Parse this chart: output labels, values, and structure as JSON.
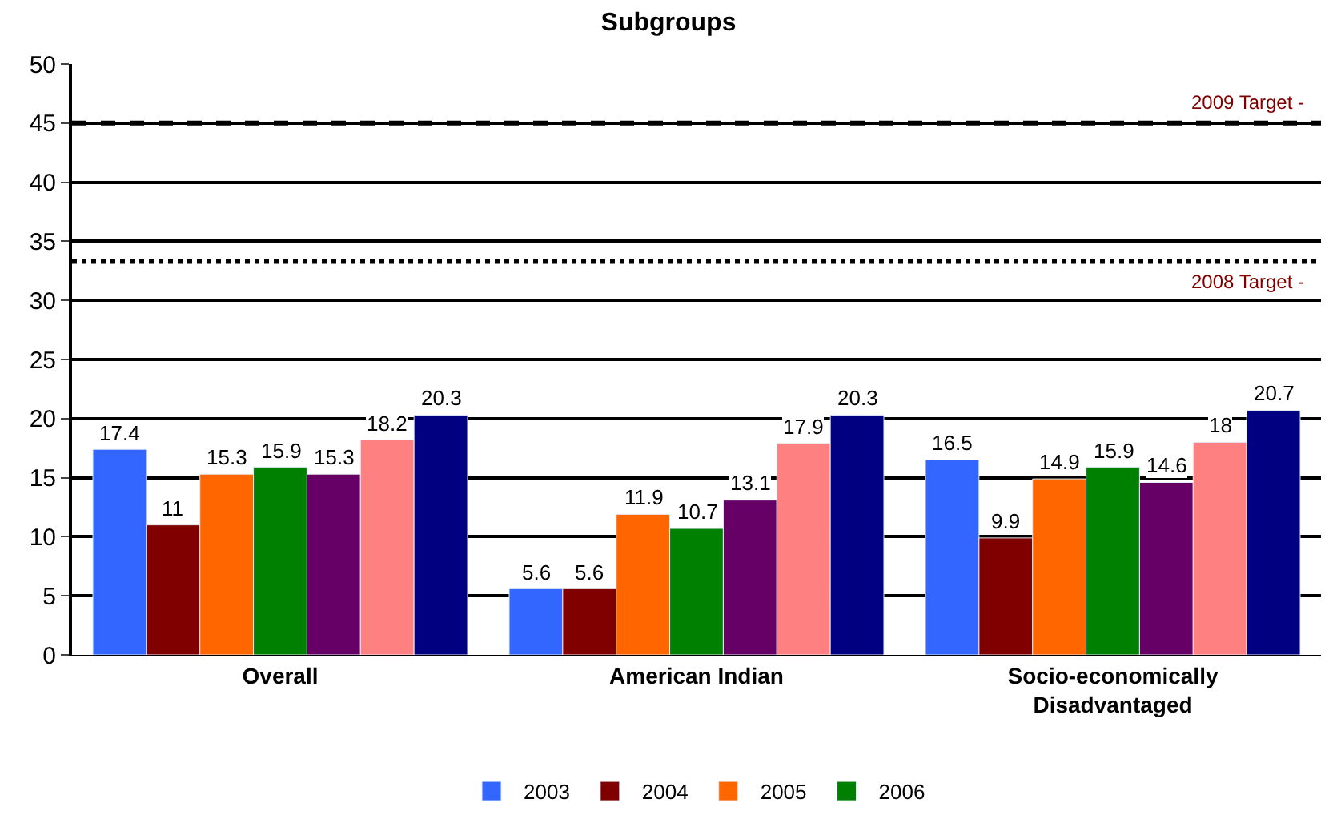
{
  "chart_data": {
    "type": "bar",
    "title": "Subgroups",
    "categories": [
      "Overall",
      "American Indian",
      "Socio-economically\nDisadvantaged"
    ],
    "series": [
      {
        "name": "2003",
        "color": "#3366ff",
        "values": [
          17.4,
          5.6,
          16.5
        ]
      },
      {
        "name": "2004",
        "color": "#800000",
        "values": [
          11,
          5.6,
          9.9
        ]
      },
      {
        "name": "2005",
        "color": "#ff6600",
        "values": [
          15.3,
          11.9,
          14.9
        ]
      },
      {
        "name": "2006",
        "color": "#008000",
        "values": [
          15.9,
          10.7,
          15.9
        ]
      },
      {
        "color": "#660066",
        "values": [
          15.3,
          13.1,
          14.6
        ]
      },
      {
        "color": "#ff8080",
        "values": [
          18.2,
          17.9,
          18
        ]
      },
      {
        "color": "#000080",
        "values": [
          20.3,
          20.3,
          20.7
        ]
      }
    ],
    "ylim": [
      0,
      50
    ],
    "yticks": [
      0,
      5,
      10,
      15,
      20,
      25,
      30,
      35,
      40,
      45,
      50
    ],
    "grid": "y",
    "legend": "bottom",
    "data_labels": true,
    "ref_lines": [
      {
        "axis": "y",
        "value": 45,
        "label": "2009 Target -",
        "color": "#000000",
        "line_style": "dashed"
      },
      {
        "axis": "y",
        "value": 33.3,
        "label": "2008 Target -",
        "color": "#000000",
        "line_style": "dotted"
      }
    ]
  }
}
